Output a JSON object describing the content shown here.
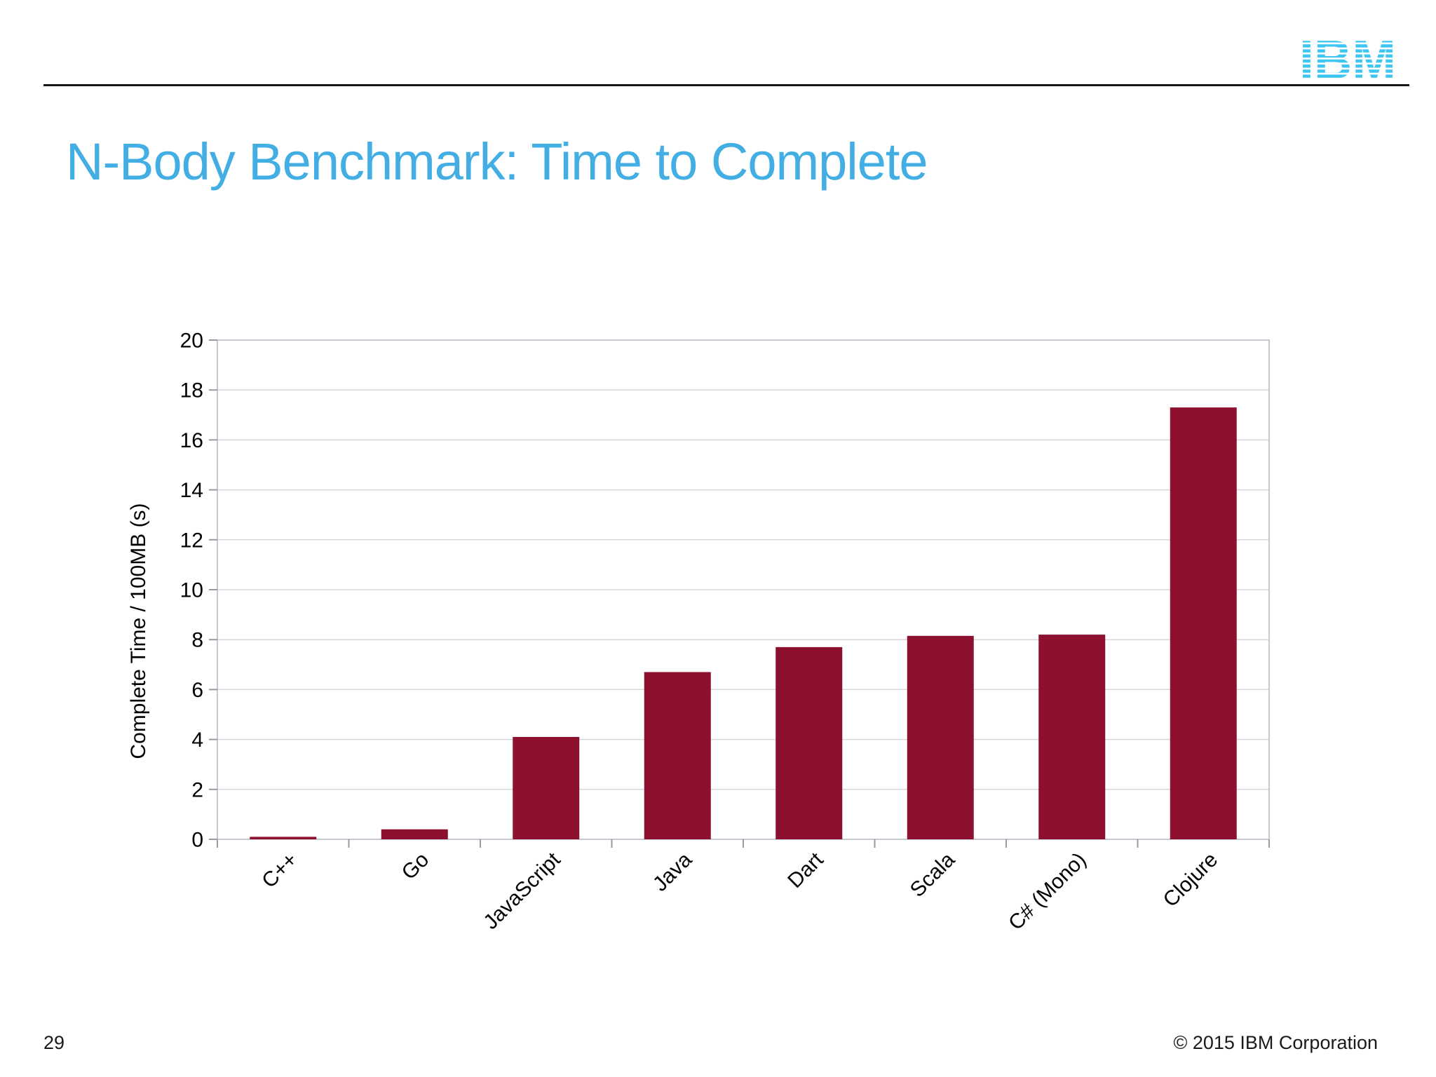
{
  "slide": {
    "title": "N-Body Benchmark: Time to Complete",
    "page_number": "29",
    "copyright": "© 2015 IBM Corporation",
    "logo_text": "IBM",
    "colors": {
      "title": "#42aee4",
      "logo": "#3ec6f2",
      "bar": "#8e102f",
      "grid": "#d6d6de",
      "frame": "#c8c8d2",
      "tick": "#9a9aa2",
      "axis_text": "#000000",
      "rule": "#151515"
    }
  },
  "chart_data": {
    "type": "bar",
    "title": "",
    "categories": [
      "C++",
      "Go",
      "JavaScript",
      "Java",
      "Dart",
      "Scala",
      "C# (Mono)",
      "Clojure"
    ],
    "values": [
      0.1,
      0.4,
      4.1,
      6.7,
      7.7,
      8.15,
      8.2,
      17.3
    ],
    "xlabel": "",
    "ylabel": "Complete Time / 100MB (s)",
    "ylim": [
      0,
      20
    ],
    "ytick_step": 2,
    "yticks": [
      0,
      2,
      4,
      6,
      8,
      10,
      12,
      14,
      16,
      18,
      20
    ],
    "grid": true,
    "legend": false,
    "bar_color": "#8e102f",
    "x_label_rotation": -45
  }
}
